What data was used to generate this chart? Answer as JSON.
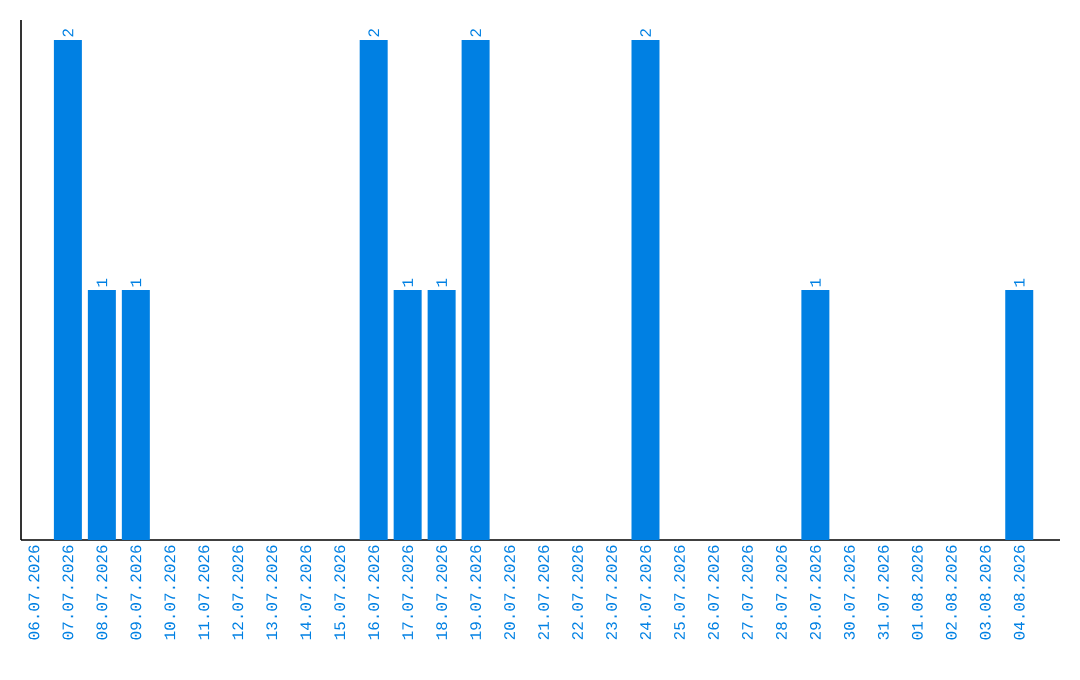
{
  "chart_data": {
    "type": "bar",
    "categories": [
      "06.07.2026",
      "07.07.2026",
      "08.07.2026",
      "09.07.2026",
      "10.07.2026",
      "11.07.2026",
      "12.07.2026",
      "13.07.2026",
      "14.07.2026",
      "15.07.2026",
      "16.07.2026",
      "17.07.2026",
      "18.07.2026",
      "19.07.2026",
      "20.07.2026",
      "21.07.2026",
      "22.07.2026",
      "23.07.2026",
      "24.07.2026",
      "25.07.2026",
      "26.07.2026",
      "27.07.2026",
      "28.07.2026",
      "29.07.2026",
      "30.07.2026",
      "31.07.2026",
      "01.08.2026",
      "02.08.2026",
      "03.08.2026",
      "04.08.2026"
    ],
    "values": [
      0,
      2,
      1,
      1,
      0,
      0,
      0,
      0,
      0,
      0,
      2,
      1,
      1,
      2,
      0,
      0,
      0,
      0,
      2,
      0,
      0,
      0,
      0,
      1,
      0,
      0,
      0,
      0,
      0,
      1
    ],
    "value_labels": [
      null,
      "2",
      "1",
      "1",
      null,
      null,
      null,
      null,
      null,
      null,
      "2",
      "1",
      "1",
      "2",
      null,
      null,
      null,
      null,
      "2",
      null,
      null,
      null,
      null,
      "1",
      null,
      null,
      null,
      null,
      null,
      "1"
    ],
    "color": "#0080e3"
  }
}
